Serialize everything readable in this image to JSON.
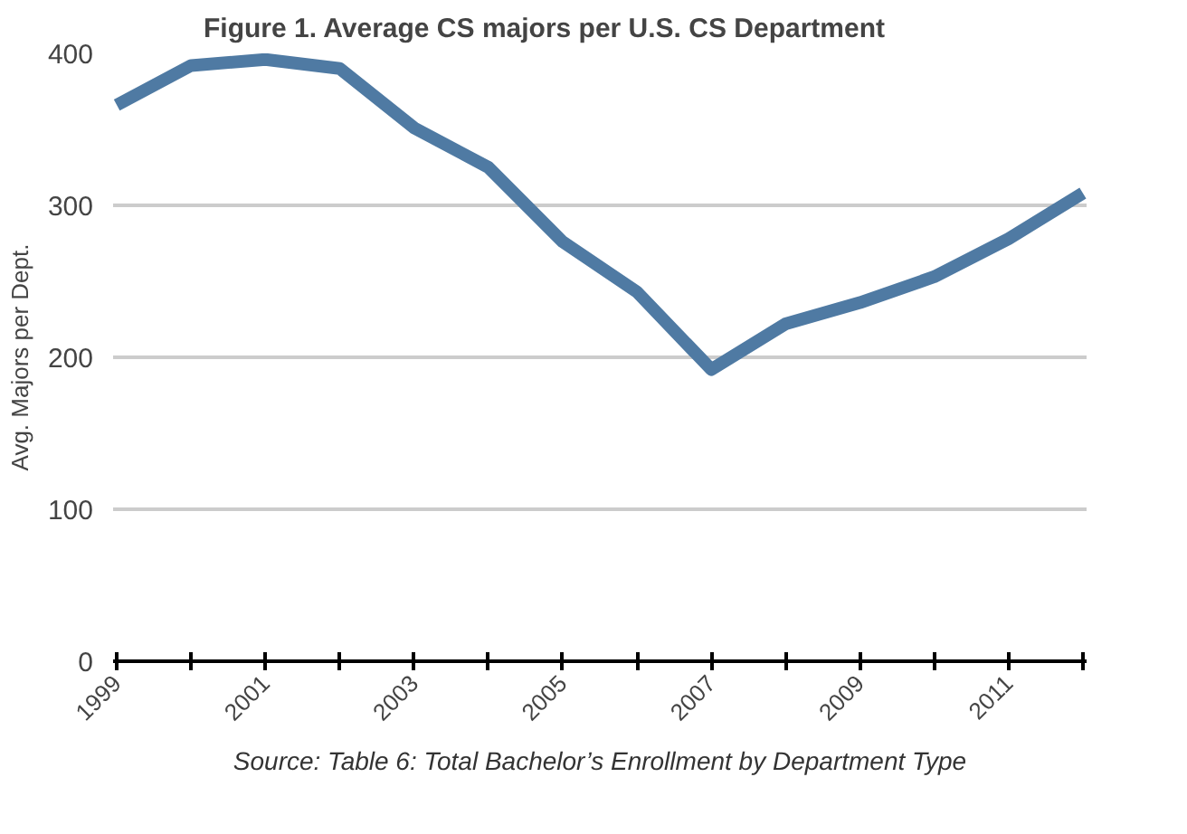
{
  "chart_data": {
    "type": "line",
    "title": "Figure 1. Average CS majors per U.S. CS Department",
    "ylabel": "Avg. Majors per Dept.",
    "categories": [
      "1999",
      null,
      "2001",
      null,
      "2003",
      null,
      "2005",
      null,
      "2007",
      null,
      "2009",
      null,
      "2011",
      null
    ],
    "series": [
      {
        "color": "#4f7aa3",
        "values": [
          366,
          392,
          396,
          390,
          351,
          325,
          276,
          243,
          192,
          222,
          236,
          253,
          278,
          308
        ]
      }
    ],
    "ylim": [
      0,
      400
    ],
    "yticks": [
      0,
      100,
      200,
      300,
      400
    ],
    "grid": "y",
    "marker": "none",
    "line_style": "solid",
    "annotations": [
      "Source: Table 6: Total Bachelor’s Enrollment by Department Type"
    ]
  }
}
